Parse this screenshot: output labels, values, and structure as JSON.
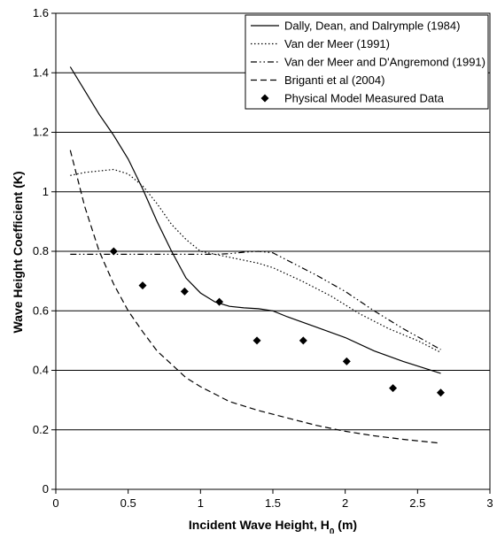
{
  "chart_data": {
    "type": "line",
    "title": "",
    "xlabel": "Incident Wave Height, H",
    "xlabel_sub": "0",
    "xlabel_suffix": " (m)",
    "ylabel": "Wave Height Coefficient (K)",
    "xlim": [
      0,
      3
    ],
    "ylim": [
      0,
      1.6
    ],
    "x_ticks": [
      "0",
      "0.5",
      "1",
      "1.5",
      "2",
      "2.5",
      "3"
    ],
    "y_ticks": [
      "0",
      "0.2",
      "0.4",
      "0.6",
      "0.8",
      "1",
      "1.2",
      "1.4",
      "1.6"
    ],
    "grid": "horizontal",
    "legend_position": "top-right",
    "series": [
      {
        "name": "Dally, Dean, and Dalrymple (1984)",
        "style": "solid",
        "points": [
          [
            0.1,
            1.42
          ],
          [
            0.2,
            1.34
          ],
          [
            0.3,
            1.26
          ],
          [
            0.4,
            1.19
          ],
          [
            0.5,
            1.11
          ],
          [
            0.6,
            1.01
          ],
          [
            0.7,
            0.9
          ],
          [
            0.8,
            0.8
          ],
          [
            0.9,
            0.71
          ],
          [
            1.0,
            0.66
          ],
          [
            1.1,
            0.63
          ],
          [
            1.2,
            0.615
          ],
          [
            1.3,
            0.61
          ],
          [
            1.4,
            0.607
          ],
          [
            1.5,
            0.6
          ],
          [
            1.6,
            0.58
          ],
          [
            1.8,
            0.545
          ],
          [
            2.0,
            0.51
          ],
          [
            2.2,
            0.465
          ],
          [
            2.4,
            0.43
          ],
          [
            2.66,
            0.39
          ]
        ]
      },
      {
        "name": "Van der Meer (1991)",
        "style": "dotted",
        "points": [
          [
            0.1,
            1.055
          ],
          [
            0.2,
            1.065
          ],
          [
            0.3,
            1.07
          ],
          [
            0.4,
            1.075
          ],
          [
            0.5,
            1.06
          ],
          [
            0.6,
            1.02
          ],
          [
            0.7,
            0.96
          ],
          [
            0.8,
            0.89
          ],
          [
            0.9,
            0.84
          ],
          [
            1.0,
            0.8
          ],
          [
            1.1,
            0.79
          ],
          [
            1.2,
            0.78
          ],
          [
            1.3,
            0.77
          ],
          [
            1.4,
            0.76
          ],
          [
            1.5,
            0.745
          ],
          [
            1.7,
            0.7
          ],
          [
            1.9,
            0.65
          ],
          [
            2.1,
            0.59
          ],
          [
            2.3,
            0.54
          ],
          [
            2.5,
            0.5
          ],
          [
            2.66,
            0.46
          ]
        ]
      },
      {
        "name": "Van der Meer and D'Angremond (1991)",
        "style": "dashdotdot",
        "points": [
          [
            0.1,
            0.79
          ],
          [
            0.3,
            0.79
          ],
          [
            0.5,
            0.79
          ],
          [
            0.7,
            0.79
          ],
          [
            0.9,
            0.79
          ],
          [
            1.1,
            0.79
          ],
          [
            1.2,
            0.792
          ],
          [
            1.3,
            0.797
          ],
          [
            1.4,
            0.8
          ],
          [
            1.5,
            0.795
          ],
          [
            1.6,
            0.77
          ],
          [
            1.8,
            0.72
          ],
          [
            2.0,
            0.665
          ],
          [
            2.2,
            0.6
          ],
          [
            2.4,
            0.54
          ],
          [
            2.66,
            0.47
          ]
        ]
      },
      {
        "name": "Briganti et al (2004)",
        "style": "dashed",
        "points": [
          [
            0.1,
            1.14
          ],
          [
            0.2,
            0.95
          ],
          [
            0.3,
            0.8
          ],
          [
            0.4,
            0.69
          ],
          [
            0.5,
            0.6
          ],
          [
            0.6,
            0.53
          ],
          [
            0.7,
            0.465
          ],
          [
            0.8,
            0.42
          ],
          [
            0.9,
            0.375
          ],
          [
            1.0,
            0.345
          ],
          [
            1.1,
            0.32
          ],
          [
            1.2,
            0.295
          ],
          [
            1.4,
            0.265
          ],
          [
            1.6,
            0.24
          ],
          [
            1.8,
            0.215
          ],
          [
            2.0,
            0.195
          ],
          [
            2.2,
            0.18
          ],
          [
            2.4,
            0.168
          ],
          [
            2.66,
            0.155
          ]
        ]
      },
      {
        "name": "Physical Model Measured Data",
        "style": "markers",
        "points": [
          [
            0.4,
            0.8
          ],
          [
            0.6,
            0.685
          ],
          [
            0.89,
            0.665
          ],
          [
            1.13,
            0.63
          ],
          [
            1.39,
            0.5
          ],
          [
            1.71,
            0.5
          ],
          [
            2.01,
            0.43
          ],
          [
            2.33,
            0.34
          ],
          [
            2.66,
            0.325
          ]
        ]
      }
    ]
  }
}
